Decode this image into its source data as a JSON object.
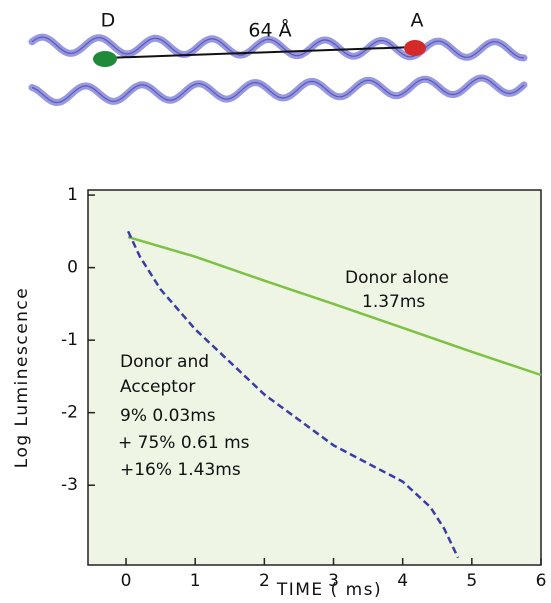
{
  "illustration": {
    "donor_label": "D",
    "distance_label": "64 Å",
    "acceptor_label": "A"
  },
  "chart_data": {
    "type": "line",
    "x_label": "TIME ( ms)",
    "y_label": "Log Luminescence",
    "xlim": [
      -0.55,
      6
    ],
    "ylim": [
      -4.1,
      1.07
    ],
    "xticks": [
      0,
      1,
      2,
      3,
      4,
      5,
      6
    ],
    "yticks": [
      1,
      0,
      -1,
      -2,
      -3
    ],
    "background": "#eef5e4",
    "series": [
      {
        "name": "Donor alone",
        "color": "#7cc242",
        "line_style": "solid",
        "x": [
          0.03,
          1,
          2,
          3,
          4,
          5,
          6
        ],
        "values": [
          0.42,
          0.15,
          -0.18,
          -0.5,
          -0.83,
          -1.16,
          -1.48
        ]
      },
      {
        "name": "Donor and Acceptor",
        "color": "#3b3ba8",
        "line_style": "dashed",
        "x": [
          0.03,
          0.2,
          0.5,
          1,
          1.5,
          2,
          2.5,
          3,
          3.5,
          4,
          4.4,
          4.6,
          4.8
        ],
        "values": [
          0.5,
          0.15,
          -0.3,
          -0.85,
          -1.3,
          -1.75,
          -2.1,
          -2.45,
          -2.7,
          -2.95,
          -3.3,
          -3.6,
          -4.0
        ]
      }
    ],
    "annotations": [
      "Donor alone",
      "1.37ms",
      "Donor and",
      "Acceptor",
      "9% 0.03ms",
      "+ 75% 0.61 ms",
      "+16% 1.43ms"
    ]
  }
}
